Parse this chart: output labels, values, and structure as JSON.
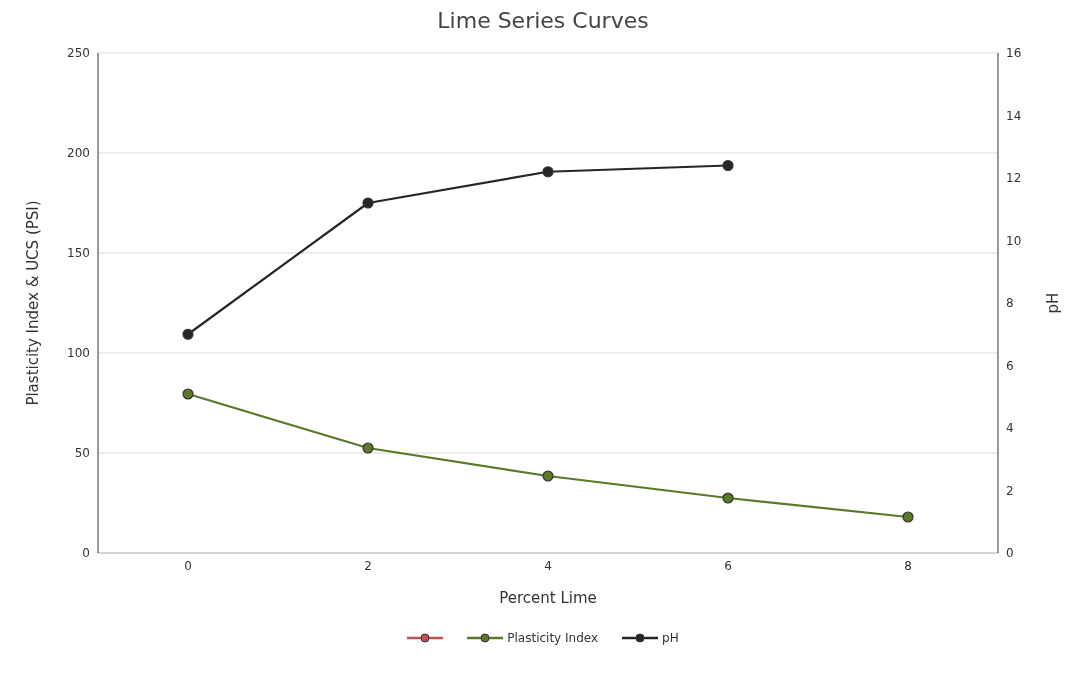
{
  "chart_data": {
    "type": "line",
    "title": "Lime Series Curves",
    "xlabel": "Percent Lime",
    "ylabel": "Plasticity Index & UCS (PSI)",
    "y2label": "pH",
    "categories": [
      "0",
      "2",
      "4",
      "6",
      "8"
    ],
    "series": [
      {
        "color": "#c0504d",
        "values": [
          null,
          null,
          null,
          null,
          null
        ]
      },
      {
        "name": "Plasticity Index",
        "color": "#5a7a2a",
        "values": [
          79.5,
          52.5,
          38.5,
          27.5,
          18
        ]
      },
      {
        "name": "pH",
        "color": "#262626",
        "axis": "y2",
        "values": [
          7.0,
          11.2,
          12.2,
          12.4,
          null
        ]
      }
    ],
    "ylim": [
      0,
      250
    ],
    "yticks": [
      0,
      50,
      100,
      150,
      200,
      250
    ],
    "y2lim": [
      0,
      16
    ],
    "y2ticks": [
      0,
      2,
      4,
      6,
      8,
      10,
      12,
      14,
      16
    ],
    "grid": "y",
    "legend": "bottom",
    "marker": "circle",
    "line_style": "solid"
  }
}
